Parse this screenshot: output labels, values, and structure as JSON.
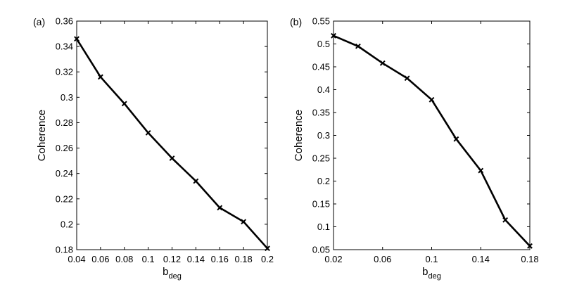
{
  "chart_data": [
    {
      "type": "line",
      "panel_label": "(a)",
      "xlabel": "b",
      "xlabel_sub": "deg",
      "ylabel": "Coherence",
      "xlim": [
        0.04,
        0.2
      ],
      "ylim": [
        0.18,
        0.36
      ],
      "xticks": [
        "0.04",
        "0.06",
        "0.08",
        "0.1",
        "0.12",
        "0.14",
        "0.16",
        "0.18",
        "0.2"
      ],
      "yticks": [
        "0.18",
        "0.2",
        "0.22",
        "0.24",
        "0.26",
        "0.28",
        "0.3",
        "0.32",
        "0.34",
        "0.36"
      ],
      "grid": false,
      "marker": "x",
      "line_color": "#000000",
      "series": [
        {
          "x": [
            0.04,
            0.06,
            0.08,
            0.1,
            0.12,
            0.14,
            0.16,
            0.18,
            0.2
          ],
          "y": [
            0.346,
            0.316,
            0.295,
            0.272,
            0.252,
            0.234,
            0.213,
            0.202,
            0.181
          ]
        }
      ]
    },
    {
      "type": "line",
      "panel_label": "(b)",
      "xlabel": "b",
      "xlabel_sub": "deg",
      "ylabel": "Coherence",
      "xlim": [
        0.02,
        0.18
      ],
      "ylim": [
        0.05,
        0.55
      ],
      "xticks": [
        "0.02",
        "0.06",
        "0.1",
        "0.14",
        "0.18"
      ],
      "yticks": [
        "0.05",
        "0.1",
        "0.15",
        "0.2",
        "0.25",
        "0.3",
        "0.35",
        "0.4",
        "0.45",
        "0.5",
        "0.55"
      ],
      "grid": false,
      "marker": "x",
      "line_color": "#000000",
      "series": [
        {
          "x": [
            0.02,
            0.04,
            0.06,
            0.08,
            0.1,
            0.12,
            0.14,
            0.16,
            0.18
          ],
          "y": [
            0.518,
            0.495,
            0.458,
            0.425,
            0.378,
            0.292,
            0.223,
            0.115,
            0.058
          ]
        }
      ]
    }
  ]
}
